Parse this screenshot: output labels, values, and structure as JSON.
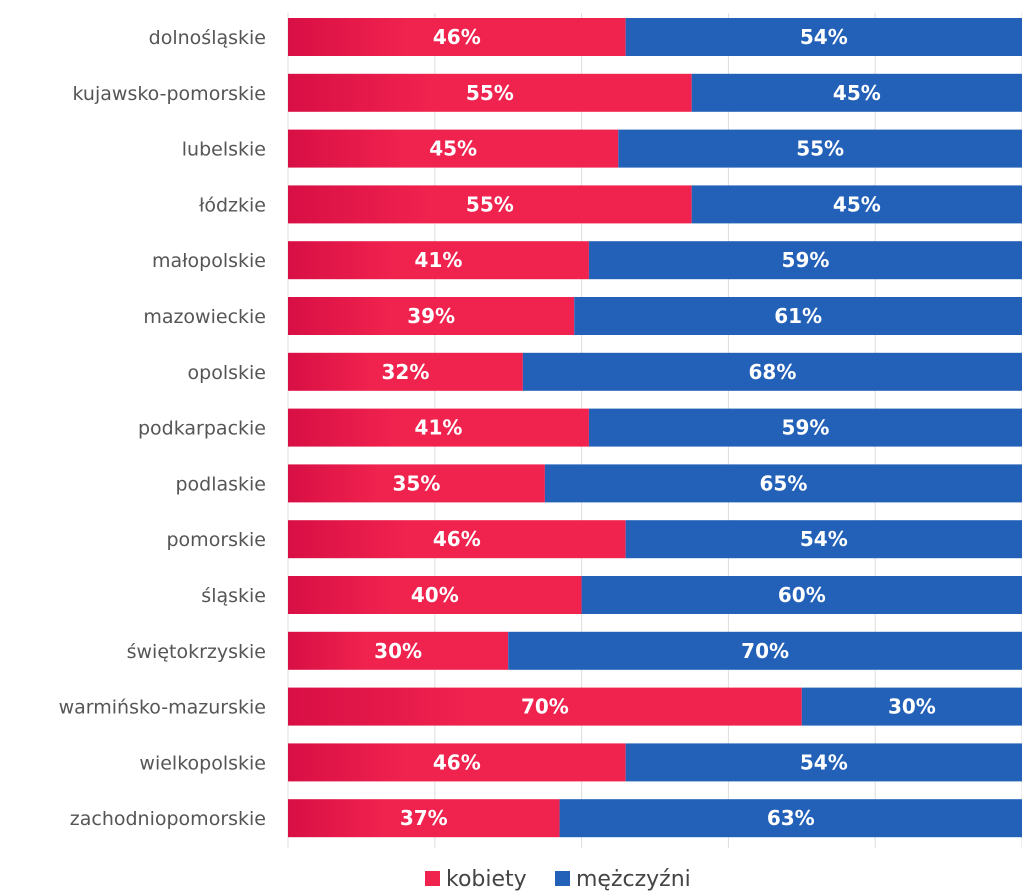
{
  "colors": {
    "kobiety": "#f0224e",
    "kobiety_dark": "#d80f45",
    "mezczyzni": "#2361b8",
    "grid": "#dddddd",
    "label": "#555555"
  },
  "legend": {
    "kobiety": "kobiety",
    "mezczyzni": "mężczyźni"
  },
  "chart_data": {
    "type": "bar",
    "orientation": "horizontal",
    "stacked": true,
    "percent": true,
    "categories": [
      "dolnośląskie",
      "kujawsko-pomorskie",
      "lubelskie",
      "łódzkie",
      "małopolskie",
      "mazowieckie",
      "opolskie",
      "podkarpackie",
      "podlaskie",
      "pomorskie",
      "śląskie",
      "świętokrzyskie",
      "warmińsko-mazurskie",
      "wielkopolskie",
      "zachodniopomorskie"
    ],
    "series": [
      {
        "name": "kobiety",
        "values": [
          46,
          55,
          45,
          55,
          41,
          39,
          32,
          41,
          35,
          46,
          40,
          30,
          70,
          46,
          37
        ],
        "labels": [
          "46%",
          "55%",
          "45%",
          "55%",
          "41%",
          "39%",
          "32%",
          "41%",
          "35%",
          "46%",
          "40%",
          "30%",
          "70%",
          "46%",
          "37%"
        ]
      },
      {
        "name": "mężczyźni",
        "values": [
          54,
          45,
          55,
          45,
          59,
          61,
          68,
          59,
          65,
          54,
          60,
          70,
          30,
          54,
          63
        ],
        "labels": [
          "54%",
          "45%",
          "55%",
          "45%",
          "59%",
          "61%",
          "68%",
          "59%",
          "65%",
          "54%",
          "60%",
          "70%",
          "30%",
          "54%",
          "63%"
        ]
      }
    ],
    "xlim": [
      0,
      100
    ],
    "grid": true,
    "legend_position": "bottom"
  }
}
